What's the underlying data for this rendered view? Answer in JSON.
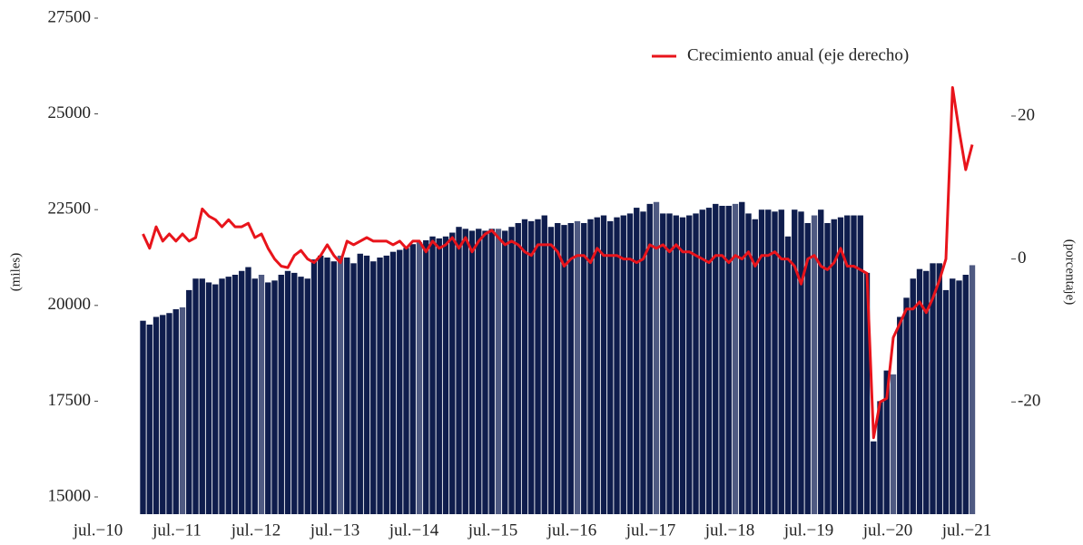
{
  "chart_data": {
    "type": "bar",
    "y_label": "(miles)",
    "y2_label": "(porcentaje)",
    "categories": [
      "jul.−10",
      null,
      null,
      null,
      null,
      null,
      null,
      null,
      null,
      null,
      null,
      null,
      "jul.−11",
      null,
      null,
      null,
      null,
      null,
      null,
      null,
      null,
      null,
      null,
      null,
      "jul.−12",
      null,
      null,
      null,
      null,
      null,
      null,
      null,
      null,
      null,
      null,
      null,
      "jul.−13",
      null,
      null,
      null,
      null,
      null,
      null,
      null,
      null,
      null,
      null,
      null,
      "jul.−14",
      null,
      null,
      null,
      null,
      null,
      null,
      null,
      null,
      null,
      null,
      null,
      "jul.−15",
      null,
      null,
      null,
      null,
      null,
      null,
      null,
      null,
      null,
      null,
      null,
      "jul.−16",
      null,
      null,
      null,
      null,
      null,
      null,
      null,
      null,
      null,
      null,
      null,
      "jul.−17",
      null,
      null,
      null,
      null,
      null,
      null,
      null,
      null,
      null,
      null,
      null,
      "jul.−18",
      null,
      null,
      null,
      null,
      null,
      null,
      null,
      null,
      null,
      null,
      null,
      "jul.−19",
      null,
      null,
      null,
      null,
      null,
      null,
      null,
      null,
      null,
      null,
      null,
      "jul.−20",
      null,
      null,
      null,
      null,
      null,
      null,
      null,
      null,
      null,
      null,
      null,
      "jul.−21"
    ],
    "series": [
      {
        "type": "bar",
        "color": "#0f1d4d",
        "highlight_color": "#4f5a82",
        "values": [
          null,
          null,
          null,
          null,
          null,
          null,
          19600,
          19500,
          19700,
          19750,
          19800,
          19900,
          19950,
          20400,
          20700,
          20700,
          20600,
          20550,
          20700,
          20750,
          20800,
          20900,
          21000,
          20700,
          20800,
          20600,
          20650,
          20800,
          20900,
          20850,
          20750,
          20700,
          21200,
          21300,
          21250,
          21150,
          21300,
          21250,
          21100,
          21350,
          21300,
          21150,
          21250,
          21300,
          21400,
          21450,
          21500,
          21600,
          21650,
          21700,
          21800,
          21750,
          21800,
          21900,
          22050,
          22000,
          21950,
          22000,
          21950,
          22000,
          22000,
          21950,
          22050,
          22150,
          22250,
          22200,
          22250,
          22350,
          22050,
          22150,
          22100,
          22150,
          22200,
          22150,
          22250,
          22300,
          22350,
          22200,
          22300,
          22350,
          22400,
          22550,
          22450,
          22650,
          22700,
          22400,
          22400,
          22350,
          22300,
          22350,
          22400,
          22500,
          22550,
          22650,
          22600,
          22600,
          22650,
          22700,
          22400,
          22250,
          22500,
          22500,
          22450,
          22500,
          21800,
          22500,
          22450,
          22150,
          22350,
          22500,
          22150,
          22250,
          22300,
          22350,
          22350,
          22350,
          20850,
          16450,
          17500,
          18300,
          18200,
          19700,
          20200,
          20700,
          20950,
          20900,
          21100,
          21100,
          20400,
          20700,
          20650,
          20800,
          21050
        ]
      },
      {
        "type": "line",
        "axis": "y2",
        "name": "Crecimiento anual (eje derecho)",
        "color": "#e8141b",
        "values": [
          null,
          null,
          null,
          null,
          null,
          null,
          3.5,
          1.5,
          4.5,
          2.5,
          3.5,
          2.5,
          3.5,
          2.5,
          3,
          7,
          6,
          5.5,
          4.5,
          5.5,
          4.5,
          4.5,
          5,
          3,
          3.5,
          1.5,
          0,
          -1,
          -1.2,
          0.5,
          1.2,
          0,
          -0.5,
          0.5,
          2,
          0.5,
          -0.5,
          2.5,
          2,
          2.5,
          3,
          2.5,
          2.5,
          2.5,
          2,
          2.5,
          1.5,
          2.5,
          2.5,
          1,
          2.5,
          1.5,
          2,
          3,
          1.5,
          3,
          1,
          2.5,
          3.5,
          4,
          3,
          2,
          2.5,
          2,
          1,
          0.5,
          2,
          2,
          2,
          1,
          -1,
          0,
          0.5,
          0.5,
          -0.5,
          1.5,
          0.5,
          0.5,
          0.5,
          0,
          0,
          -0.5,
          0,
          2,
          1.5,
          2,
          1,
          2,
          1,
          1,
          0.5,
          0,
          -0.5,
          0.5,
          0.5,
          -0.5,
          0.5,
          0,
          1,
          -1,
          0.5,
          0.5,
          1,
          0,
          0,
          -1,
          -3.5,
          0,
          0.5,
          -1,
          -1.5,
          -0.5,
          1.5,
          -1,
          -1,
          -1.5,
          -2,
          -25,
          -20,
          -19.5,
          -11,
          -9,
          -7,
          -7,
          -6,
          -7.5,
          -5.5,
          -3,
          0,
          24,
          18,
          12.5,
          16
        ]
      }
    ],
    "ylim": [
      14550,
      27500
    ],
    "yticks": [
      15000,
      17500,
      20000,
      22500,
      25000,
      27500
    ],
    "y2lim": [
      -35.7,
      33.7
    ],
    "y2ticks": [
      -20,
      0,
      20
    ],
    "legend": "upper right"
  }
}
